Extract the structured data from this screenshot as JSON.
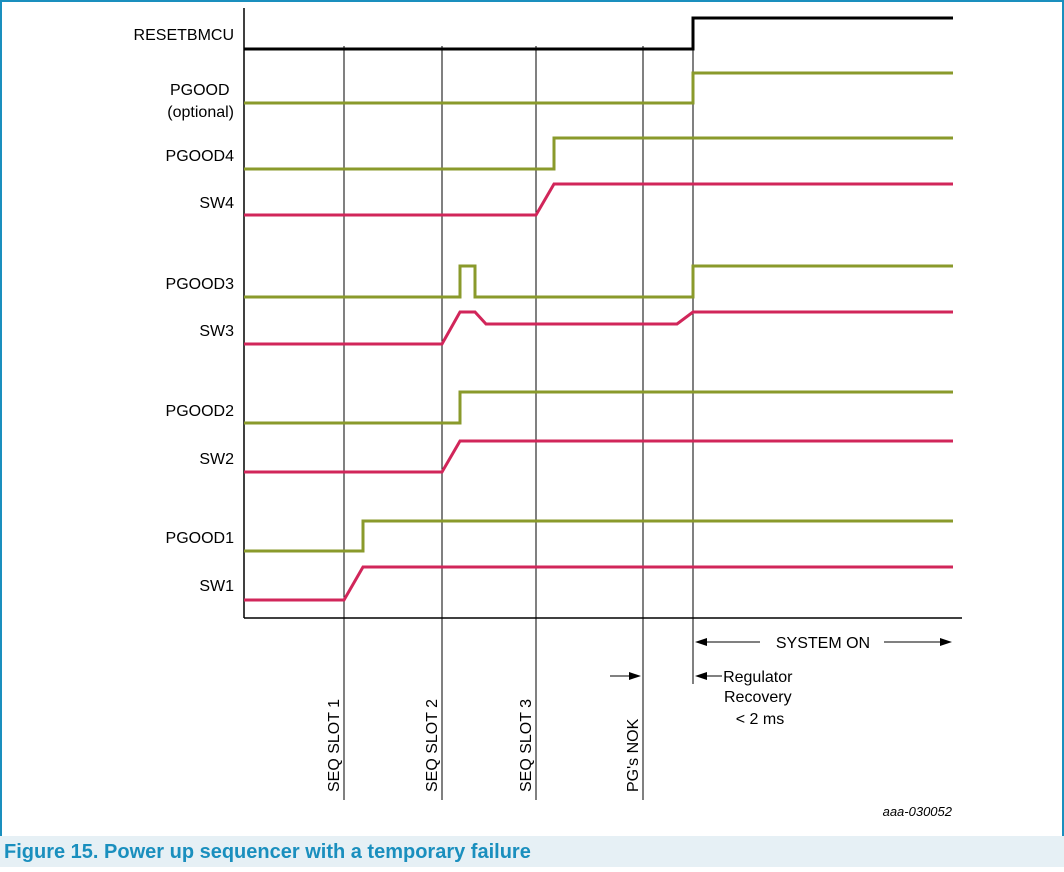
{
  "caption": "Figure 15.  Power up sequencer with a temporary failure",
  "figure_id": "aaa-030052",
  "colors": {
    "frame": "#1a8fbe",
    "caption_bg": "#e6f0f5",
    "pgood": "#8a9a2b",
    "sw": "#d1265a",
    "reset": "#000000"
  },
  "signals": [
    {
      "id": "resetbmcu",
      "lines": [
        "RESETBMCU"
      ],
      "kind": "reset"
    },
    {
      "id": "pgood",
      "lines": [
        "PGOOD",
        "(optional)"
      ],
      "kind": "pgood"
    },
    {
      "id": "pgood4",
      "lines": [
        "PGOOD4"
      ],
      "kind": "pgood"
    },
    {
      "id": "sw4",
      "lines": [
        "SW4"
      ],
      "kind": "sw"
    },
    {
      "id": "pgood3",
      "lines": [
        "PGOOD3"
      ],
      "kind": "pgood"
    },
    {
      "id": "sw3",
      "lines": [
        "SW3"
      ],
      "kind": "sw"
    },
    {
      "id": "pgood2",
      "lines": [
        "PGOOD2"
      ],
      "kind": "pgood"
    },
    {
      "id": "sw2",
      "lines": [
        "SW2"
      ],
      "kind": "sw"
    },
    {
      "id": "pgood1",
      "lines": [
        "PGOOD1"
      ],
      "kind": "pgood"
    },
    {
      "id": "sw1",
      "lines": [
        "SW1"
      ],
      "kind": "sw"
    }
  ],
  "markers": [
    {
      "id": "seq-slot-1",
      "label": "SEQ SLOT 1"
    },
    {
      "id": "seq-slot-2",
      "label": "SEQ SLOT 2"
    },
    {
      "id": "seq-slot-3",
      "label": "SEQ SLOT 3"
    },
    {
      "id": "pgs-nok",
      "label": "PG's NOK"
    }
  ],
  "annotations": {
    "system_on": "SYSTEM ON",
    "regulator_recovery": [
      "Regulator",
      "Recovery",
      "< 2 ms"
    ]
  }
}
